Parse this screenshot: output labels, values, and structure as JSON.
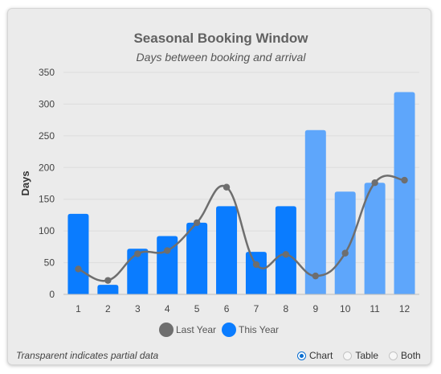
{
  "chart_data": {
    "type": "bar",
    "title": "Seasonal Booking Window",
    "subtitle": "Days between booking and arrival",
    "ylabel": "Days",
    "xlabel": "",
    "categories": [
      "1",
      "2",
      "3",
      "4",
      "5",
      "6",
      "7",
      "8",
      "9",
      "10",
      "11",
      "12"
    ],
    "ylim": [
      0,
      350
    ],
    "yticks": [
      0,
      50,
      100,
      150,
      200,
      250,
      300,
      350
    ],
    "grid": true,
    "legend_position": "bottom",
    "series": [
      {
        "name": "Last Year",
        "type": "line",
        "smooth": true,
        "color": "#6e6e6e",
        "values": [
          40,
          22,
          64,
          69,
          113,
          169,
          47,
          63,
          29,
          65,
          176,
          180
        ]
      },
      {
        "name": "This Year",
        "type": "bar",
        "color": "#0a7cff",
        "partial_color": "#5ea6fb",
        "partial": [
          false,
          false,
          false,
          false,
          false,
          false,
          false,
          false,
          true,
          true,
          true,
          true
        ],
        "values": [
          127,
          15,
          72,
          92,
          113,
          139,
          67,
          139,
          259,
          162,
          176,
          319
        ]
      }
    ]
  },
  "footer": {
    "note": "Transparent indicates partial data",
    "view_options": [
      {
        "label": "Chart",
        "selected": true
      },
      {
        "label": "Table",
        "selected": false
      },
      {
        "label": "Both",
        "selected": false
      }
    ]
  }
}
